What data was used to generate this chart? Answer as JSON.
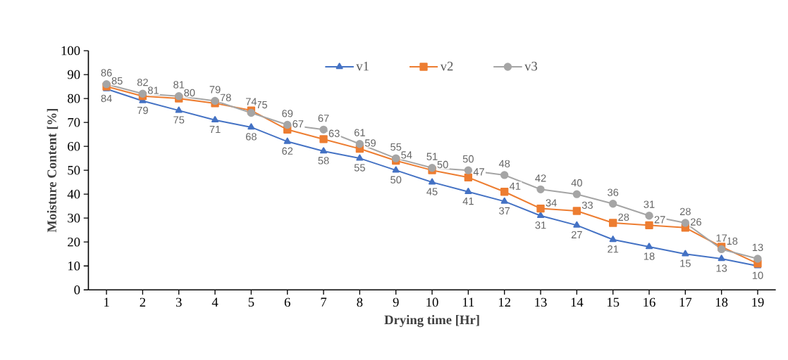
{
  "chart_data": {
    "type": "line",
    "xlabel": "Drying time [Hr]",
    "ylabel": "Moisture Content [%]",
    "categories": [
      "1",
      "2",
      "3",
      "4",
      "5",
      "6",
      "7",
      "8",
      "9",
      "10",
      "11",
      "12",
      "13",
      "14",
      "15",
      "16",
      "17",
      "18",
      "19"
    ],
    "ylim": [
      0,
      100
    ],
    "yticks": [
      0,
      10,
      20,
      30,
      40,
      50,
      60,
      70,
      80,
      90,
      100
    ],
    "legend": "top",
    "line_style": "solid",
    "series": [
      {
        "name": "v1",
        "color": "#4472c4",
        "marker": "triangle",
        "values": [
          84,
          79,
          75,
          71,
          68,
          62,
          58,
          55,
          50,
          45,
          41,
          37,
          31,
          27,
          21,
          18,
          15,
          13,
          10
        ],
        "value_labels": [
          "84",
          "79",
          "75",
          "71",
          "68",
          "62",
          "58",
          "55",
          "50",
          "45",
          "41",
          "37",
          "31",
          "27",
          "21",
          "18",
          "15",
          "13",
          "10"
        ]
      },
      {
        "name": "v2",
        "color": "#ed7d31",
        "marker": "square",
        "values": [
          85,
          81,
          80,
          78,
          75,
          67,
          63,
          59,
          54,
          50,
          47,
          41,
          34,
          33,
          28,
          27,
          26,
          18,
          11
        ],
        "value_labels": [
          "85",
          "81",
          "80",
          "78",
          "75",
          "67",
          "63",
          "59",
          "54",
          "50",
          "47",
          "41",
          "34",
          "33",
          "28",
          "27",
          "26",
          "18",
          null
        ]
      },
      {
        "name": "v3",
        "color": "#a5a5a5",
        "marker": "circle",
        "values": [
          86,
          82,
          81,
          79,
          74,
          69,
          67,
          61,
          55,
          51,
          50,
          48,
          42,
          40,
          36,
          31,
          28,
          17,
          13
        ],
        "value_labels": [
          "86",
          "82",
          "81",
          "79",
          "74",
          "69",
          "67",
          "61",
          "55",
          "51",
          "50",
          "48",
          "42",
          "40",
          "36",
          "31",
          "28",
          "17",
          "13"
        ]
      }
    ]
  }
}
